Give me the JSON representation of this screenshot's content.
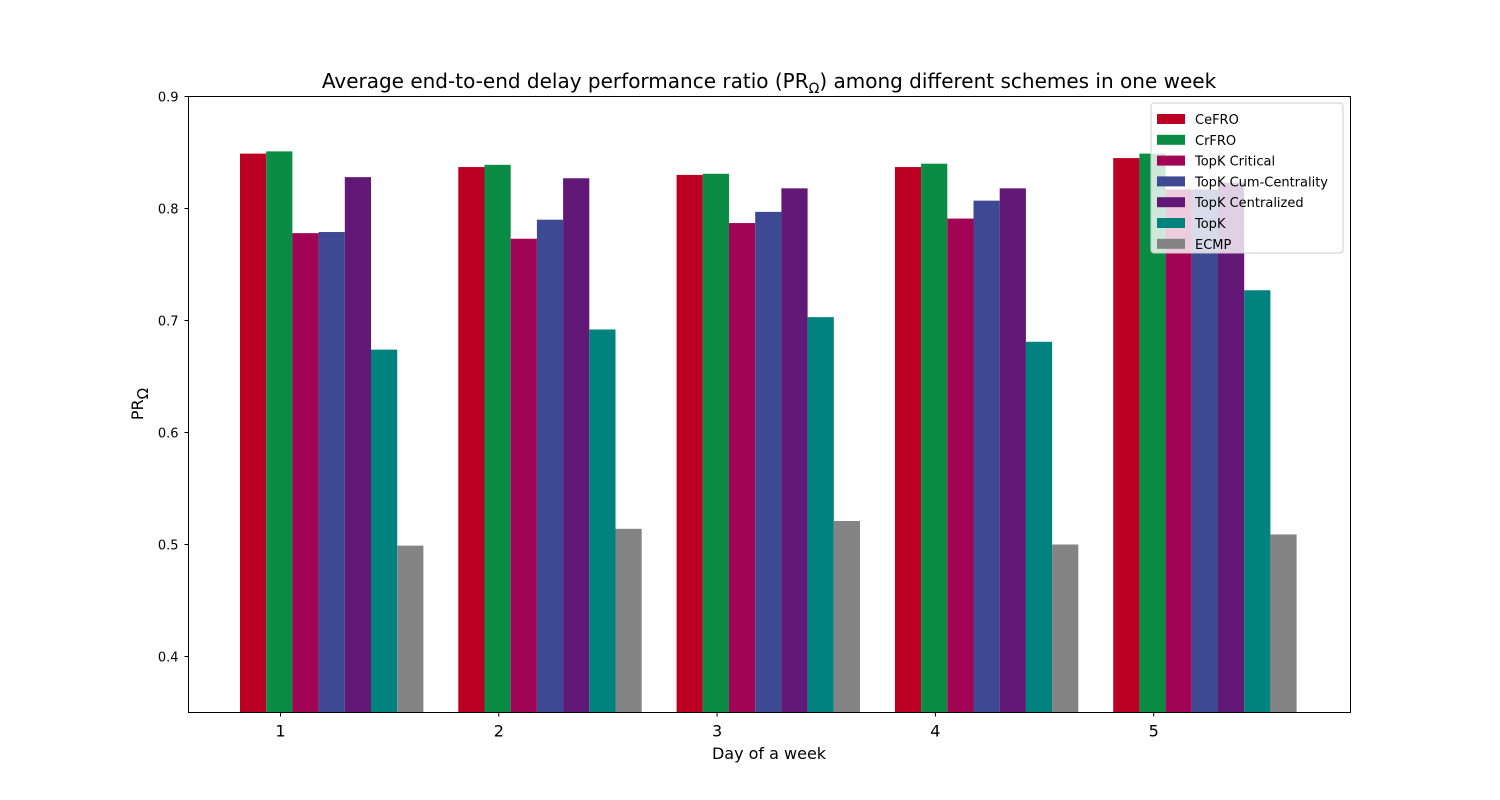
{
  "chart_data": {
    "type": "bar",
    "title_main": "Average end-to-end delay performance ratio (PR",
    "title_sub": "Ω",
    "title_end": ") among different schemes in one week",
    "xlabel": "Day of a week",
    "ylabel_main": "PR",
    "ylabel_sub": "Ω",
    "categories": [
      "1",
      "2",
      "3",
      "4",
      "5"
    ],
    "ylim": [
      0.35,
      0.9
    ],
    "yticks": [
      "0.4",
      "0.5",
      "0.6",
      "0.7",
      "0.8",
      "0.9"
    ],
    "grid": false,
    "legend_position": "top-right",
    "series": [
      {
        "name": "CeFRO",
        "color": "#BB0024",
        "values": [
          0.849,
          0.837,
          0.83,
          0.837,
          0.845
        ]
      },
      {
        "name": "CrFRO",
        "color": "#0A8C45",
        "values": [
          0.851,
          0.839,
          0.831,
          0.84,
          0.849
        ]
      },
      {
        "name": "TopK Critical",
        "color": "#A10355",
        "values": [
          0.778,
          0.773,
          0.787,
          0.791,
          0.817
        ]
      },
      {
        "name": "TopK Cum-Centrality",
        "color": "#3D4A93",
        "values": [
          0.779,
          0.79,
          0.797,
          0.807,
          0.817
        ]
      },
      {
        "name": "TopK Centralized",
        "color": "#621876",
        "values": [
          0.828,
          0.827,
          0.818,
          0.818,
          0.823
        ]
      },
      {
        "name": "TopK",
        "color": "#00827F",
        "values": [
          0.674,
          0.692,
          0.703,
          0.681,
          0.727
        ]
      },
      {
        "name": "ECMP",
        "color": "#848484",
        "values": [
          0.499,
          0.514,
          0.521,
          0.5,
          0.509
        ]
      }
    ]
  }
}
